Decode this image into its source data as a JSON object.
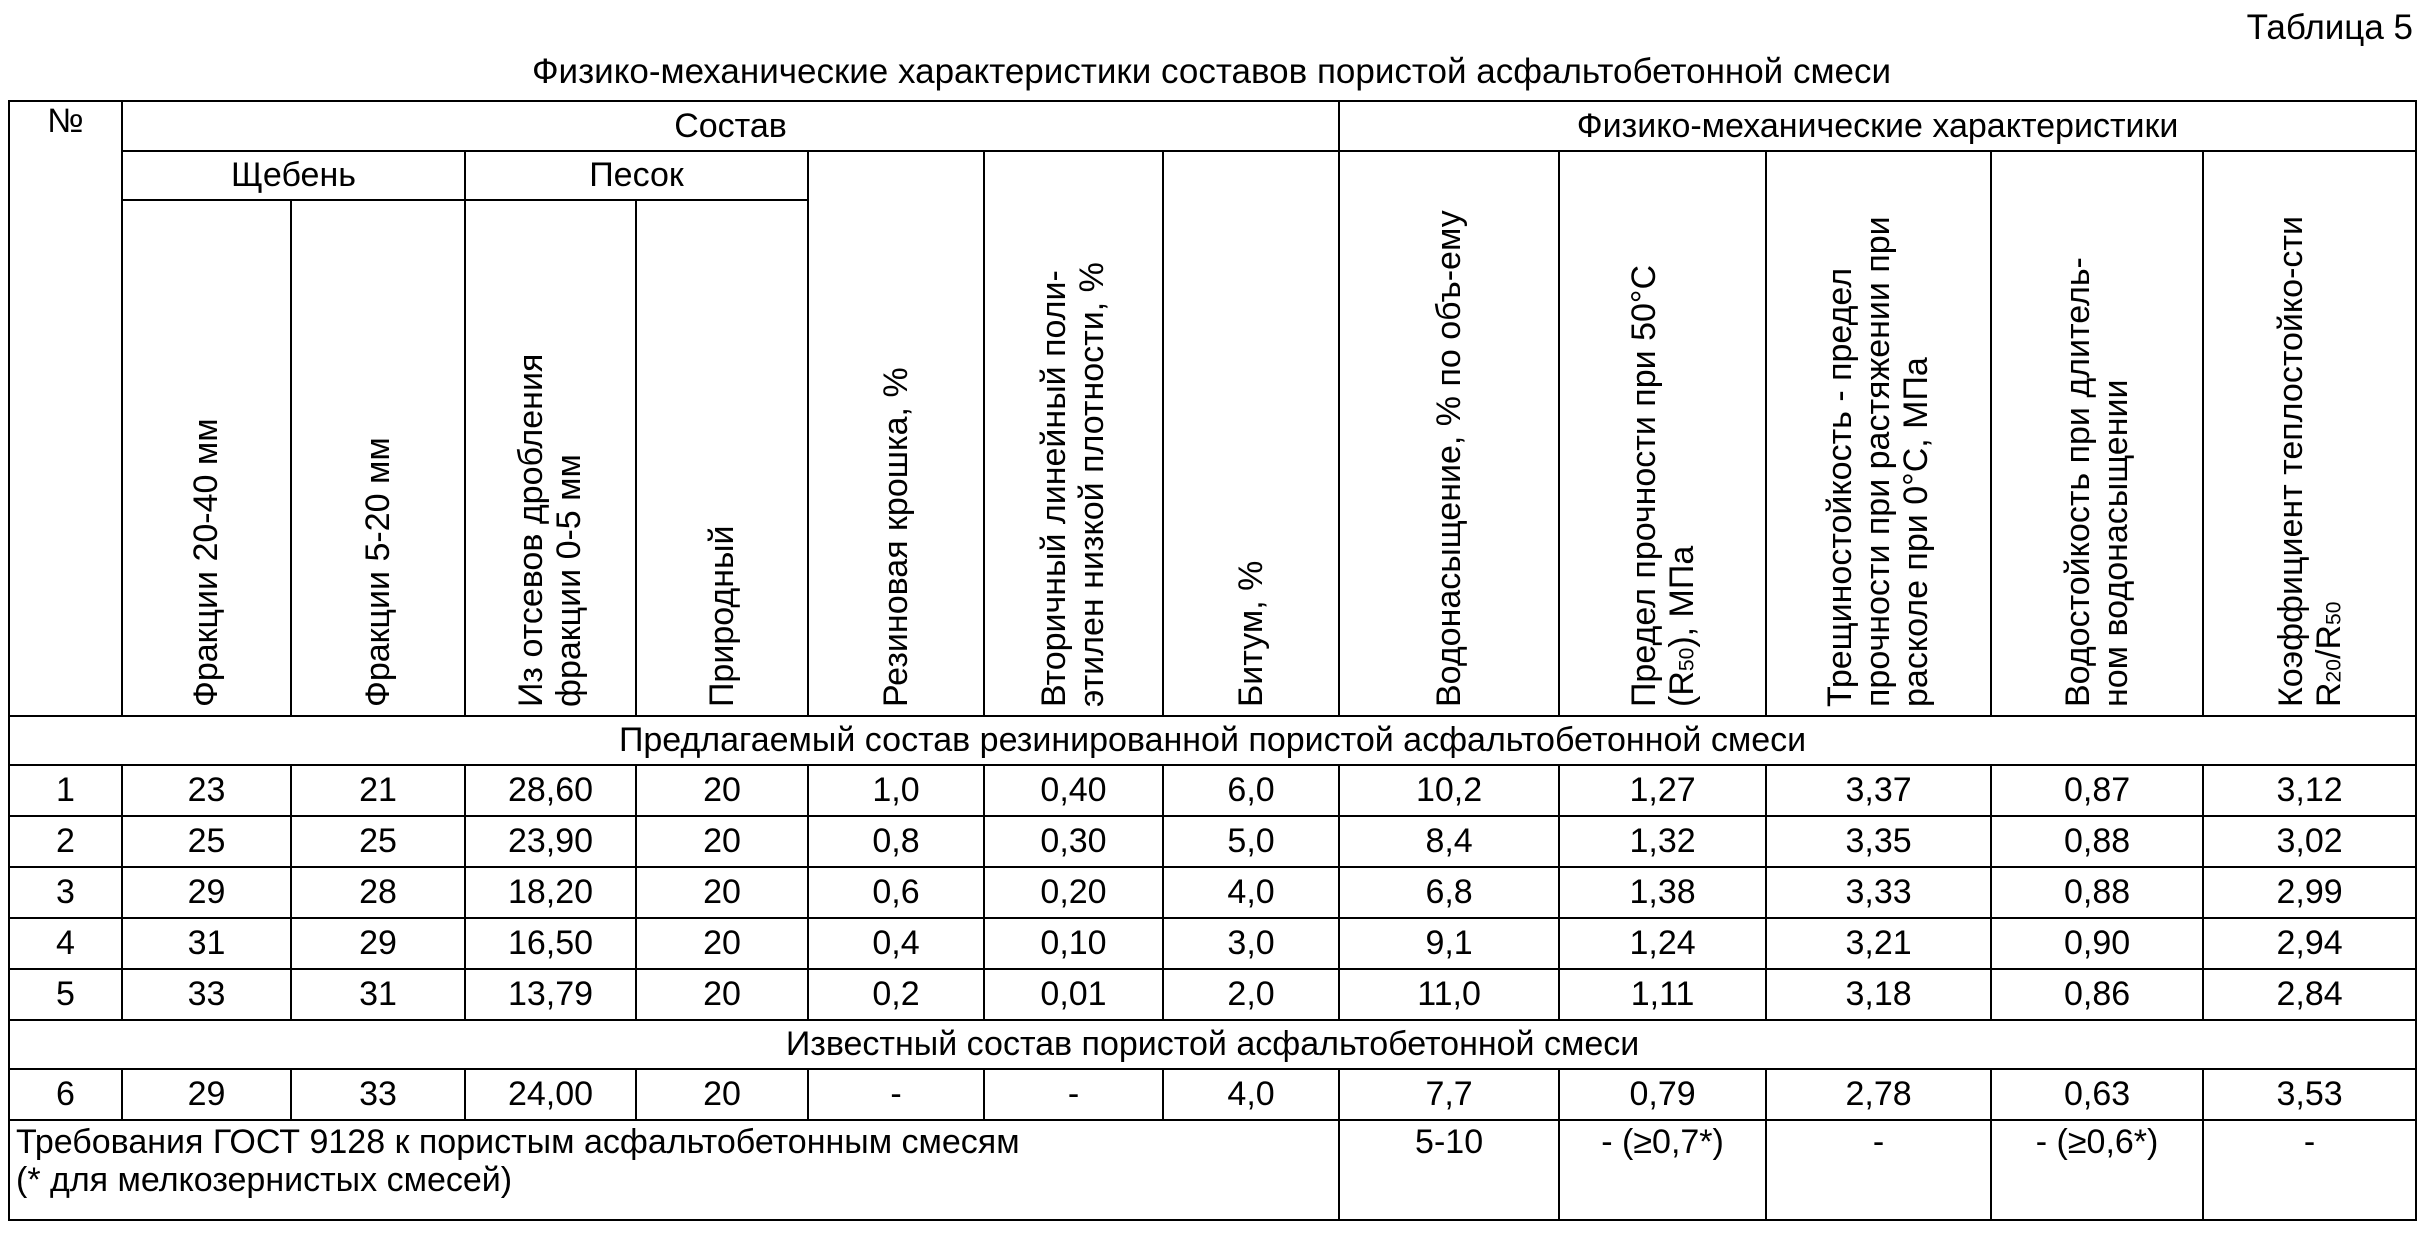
{
  "caption": "Таблица 5",
  "title": "Физико-механические характеристики составов пористой асфальтобетонной смеси",
  "headers": {
    "no": "№",
    "composition": "Состав",
    "properties": "Физико-механические характеристики",
    "crushed_stone": "Щебень",
    "sand": "Песок",
    "columns": [
      [
        {
          "text": "Фракции 20-40 мм"
        }
      ],
      [
        {
          "text": "Фракции 5-20 мм"
        }
      ],
      [
        {
          "text": "Из отсевов дробления фракции 0-5 мм"
        }
      ],
      [
        {
          "text": "Природный"
        }
      ],
      [
        {
          "text": "Резиновая крошка, %"
        }
      ],
      [
        {
          "text": "Вторичный линейный поли-этилен низкой плотности, %"
        }
      ],
      [
        {
          "text": "Битум, %"
        }
      ],
      [
        {
          "text": "Водонасыщение, % по объ-ему"
        }
      ],
      [
        {
          "text": "Предел прочности при 50°С (R"
        },
        {
          "text": "50",
          "sub": true
        },
        {
          "text": "), МПа"
        }
      ],
      [
        {
          "text": "Трещиностойкость - предел прочности при растяжении при расколе при 0°С, МПа"
        }
      ],
      [
        {
          "text": "Водостойкость при длитель-ном водонасыщении"
        }
      ],
      [
        {
          "text": "Коэффициент теплостойко-сти R"
        },
        {
          "text": "20",
          "sub": true
        },
        {
          "text": "/R"
        },
        {
          "text": "50",
          "sub": true
        }
      ]
    ]
  },
  "sections": [
    {
      "title": "Предлагаемый состав резинированной пористой асфальтобетонной смеси",
      "rows": [
        [
          "1",
          "23",
          "21",
          "28,60",
          "20",
          "1,0",
          "0,40",
          "6,0",
          "10,2",
          "1,27",
          "3,37",
          "0,87",
          "3,12"
        ],
        [
          "2",
          "25",
          "25",
          "23,90",
          "20",
          "0,8",
          "0,30",
          "5,0",
          "8,4",
          "1,32",
          "3,35",
          "0,88",
          "3,02"
        ],
        [
          "3",
          "29",
          "28",
          "18,20",
          "20",
          "0,6",
          "0,20",
          "4,0",
          "6,8",
          "1,38",
          "3,33",
          "0,88",
          "2,99"
        ],
        [
          "4",
          "31",
          "29",
          "16,50",
          "20",
          "0,4",
          "0,10",
          "3,0",
          "9,1",
          "1,24",
          "3,21",
          "0,90",
          "2,94"
        ],
        [
          "5",
          "33",
          "31",
          "13,79",
          "20",
          "0,2",
          "0,01",
          "2,0",
          "11,0",
          "1,11",
          "3,18",
          "0,86",
          "2,84"
        ]
      ]
    },
    {
      "title": "Известный состав пористой асфальтобетонной смеси",
      "rows": [
        [
          "6",
          "29",
          "33",
          "24,00",
          "20",
          "-",
          "-",
          "4,0",
          "7,7",
          "0,79",
          "2,78",
          "0,63",
          "3,53"
        ]
      ]
    }
  ],
  "requirements": {
    "label": "Требования ГОСТ 9128 к пористым асфальтобетонным смесям",
    "note": "(* для мелкозернистых смесей)",
    "values": [
      "5-10",
      "- (≥0,7*)",
      "-",
      "- (≥0,6*)",
      "-"
    ]
  }
}
